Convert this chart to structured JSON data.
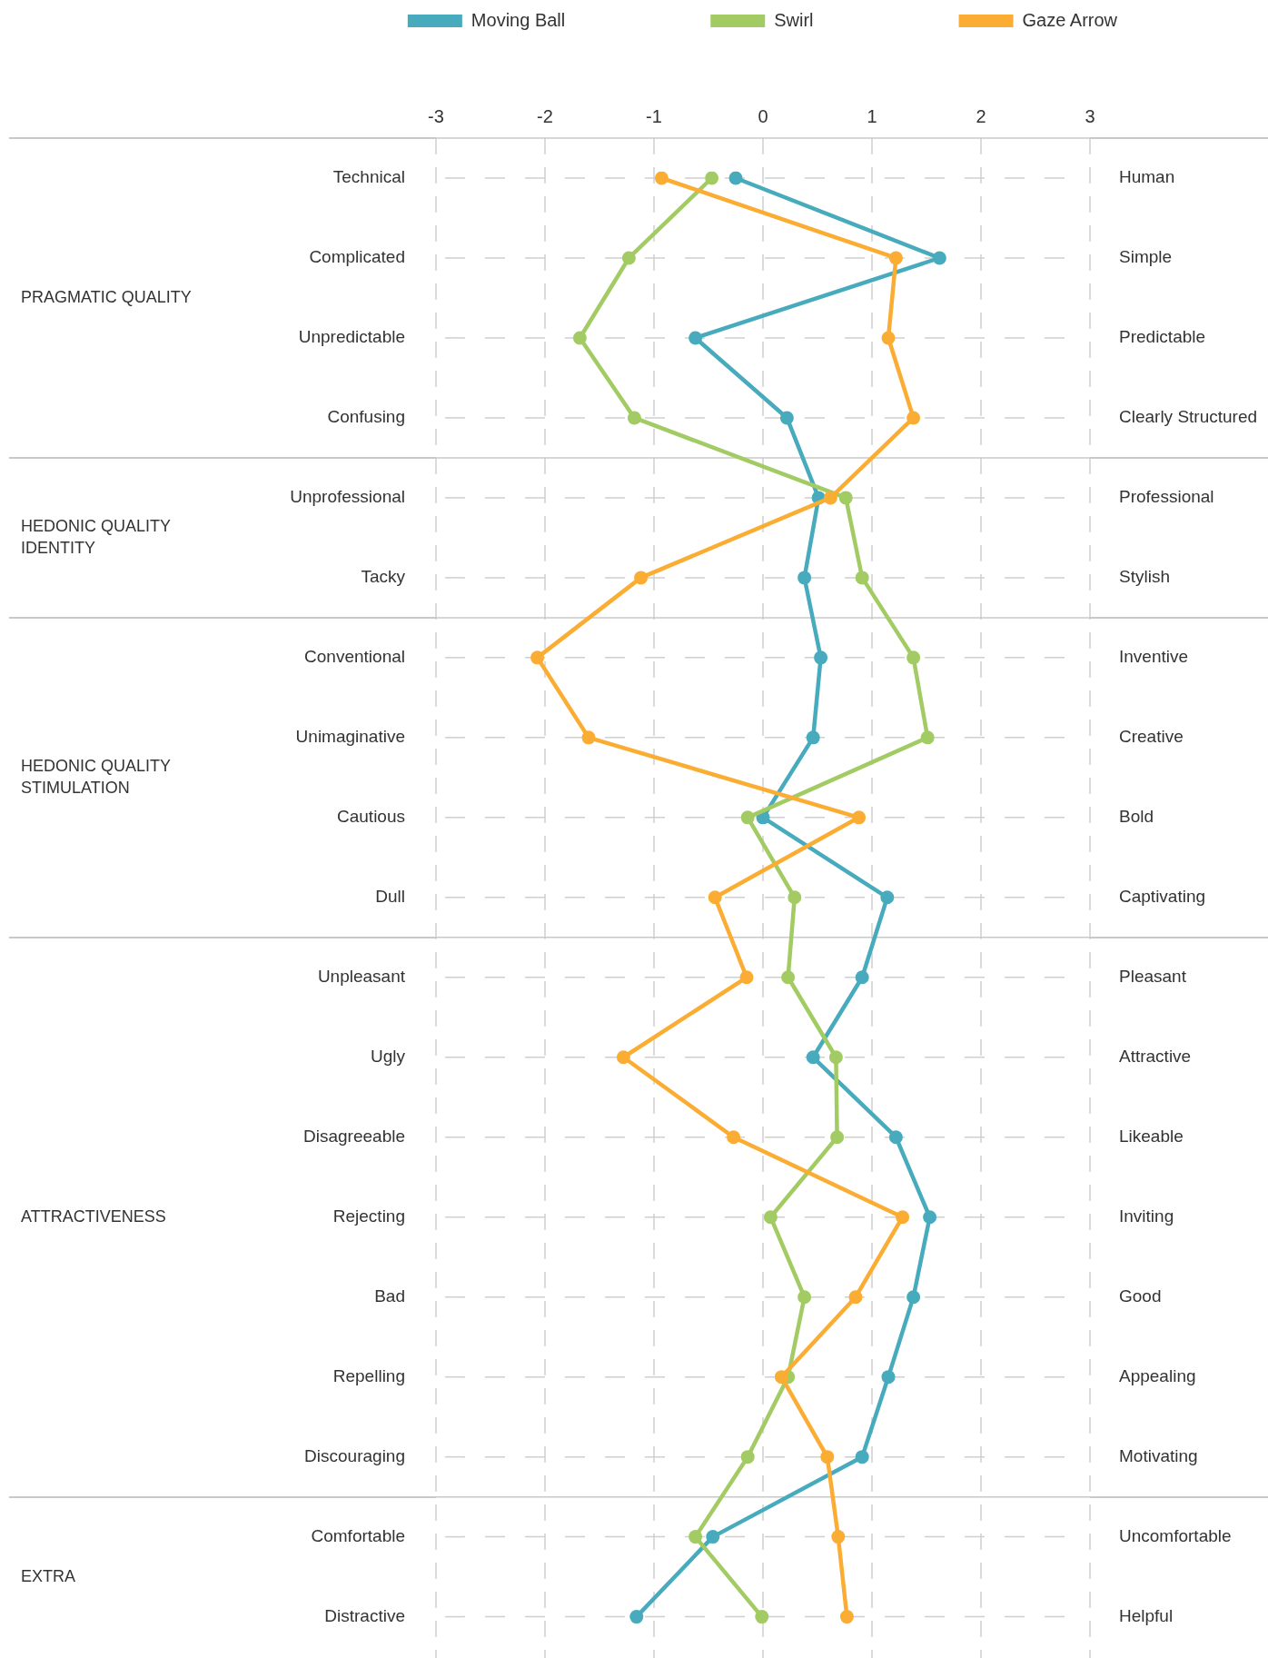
{
  "chart_data": {
    "type": "line",
    "orientation": "horizontal",
    "legend": "top",
    "grid": true,
    "marker": "circle",
    "line_style": "solid",
    "categories": [
      "Technical",
      "Complicated",
      "Unpredictable",
      "Confusing",
      "Unprofessional",
      "Tacky",
      "Conventional",
      "Unimaginative",
      "Cautious",
      "Dull",
      "Unpleasant",
      "Ugly",
      "Disagreeable",
      "Rejecting",
      "Bad",
      "Repelling",
      "Discouraging",
      "Comfortable",
      "Distractive"
    ],
    "y2_categories": [
      "Human",
      "Simple",
      "Predictable",
      "Clearly Structured",
      "Professional",
      "Stylish",
      "Inventive",
      "Creative",
      "Bold",
      "Captivating",
      "Pleasant",
      "Attractive",
      "Likeable",
      "Inviting",
      "Good",
      "Appealing",
      "Motivating",
      "Uncomfortable",
      "Helpful"
    ],
    "xlim": [
      -3,
      3
    ],
    "xticks": [
      -3,
      -2,
      -1,
      0,
      1,
      2,
      3
    ],
    "annotations": [
      "PRAGMATIC QUALITY",
      "HEDONIC QUALITY IDENTITY",
      "HEDONIC QUALITY STIMULATION",
      "ATTRACTIVENESS",
      "EXTRA"
    ],
    "series": [
      {
        "name": "Moving Ball",
        "color": "#47abbd",
        "values": [
          -0.25,
          1.62,
          -0.62,
          0.22,
          0.51,
          0.38,
          0.53,
          0.46,
          0.0,
          1.14,
          0.91,
          0.46,
          1.22,
          1.53,
          1.38,
          1.15,
          0.91,
          -0.46,
          -1.16
        ]
      },
      {
        "name": "Swirl",
        "color": "#a3cb63",
        "values": [
          -0.47,
          -1.23,
          -1.68,
          -1.18,
          0.76,
          0.91,
          1.38,
          1.51,
          -0.14,
          0.29,
          0.23,
          0.67,
          0.68,
          0.07,
          0.38,
          0.23,
          -0.14,
          -0.62,
          -0.01
        ]
      },
      {
        "name": "Gaze Arrow",
        "color": "#fbad33",
        "values": [
          -0.93,
          1.22,
          1.15,
          1.38,
          0.62,
          -1.12,
          -2.07,
          -1.6,
          0.88,
          -0.44,
          -0.15,
          -1.28,
          -0.27,
          1.28,
          0.85,
          0.17,
          0.59,
          0.69,
          0.77
        ]
      }
    ]
  }
}
